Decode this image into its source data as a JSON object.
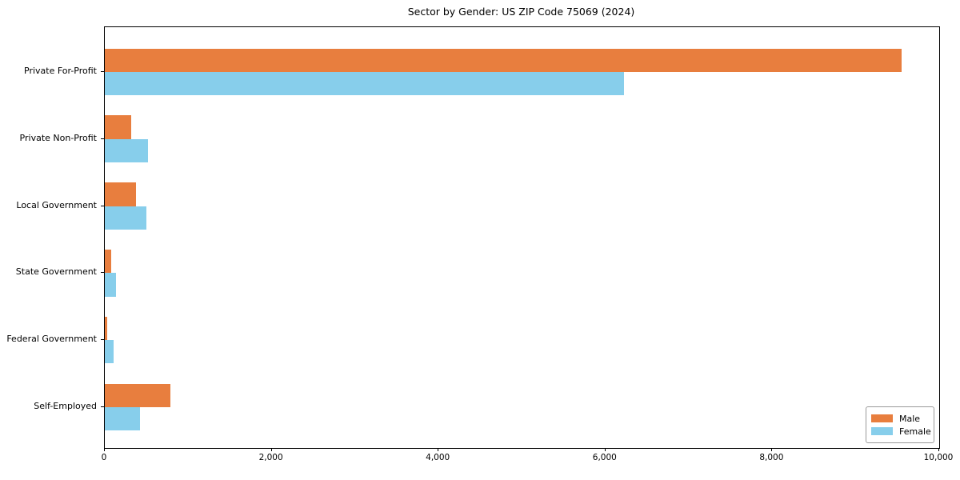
{
  "title": "Sector by Gender: US ZIP Code 75069 (2024)",
  "colors": {
    "male": "#e87e3e",
    "female": "#87ceeb",
    "axis": "#000000",
    "legend_border": "#9a9a9a",
    "background": "#ffffff"
  },
  "legend": {
    "position": "lower right",
    "items": [
      {
        "label": "Male",
        "color": "#e87e3e"
      },
      {
        "label": "Female",
        "color": "#87ceeb"
      }
    ]
  },
  "x_axis": {
    "tick_labels": [
      "0",
      "2,000",
      "4,000",
      "6,000",
      "8,000",
      "10,000"
    ],
    "tick_values": [
      0,
      2000,
      4000,
      6000,
      8000,
      10000
    ],
    "min": 0,
    "max": 10000
  },
  "chart_data": {
    "type": "bar",
    "orientation": "horizontal",
    "title": "Sector by Gender: US ZIP Code 75069 (2024)",
    "xlabel": "",
    "ylabel": "",
    "xlim": [
      0,
      10000
    ],
    "grid": false,
    "legend_position": "lower right",
    "categories": [
      "Private For-Profit",
      "Private Non-Profit",
      "Local Government",
      "State Government",
      "Federal Government",
      "Self-Employed"
    ],
    "series": [
      {
        "name": "Male",
        "color": "#e87e3e",
        "values": [
          9550,
          315,
          375,
          80,
          30,
          790
        ]
      },
      {
        "name": "Female",
        "color": "#87ceeb",
        "values": [
          6220,
          520,
          500,
          130,
          110,
          420
        ]
      }
    ]
  }
}
